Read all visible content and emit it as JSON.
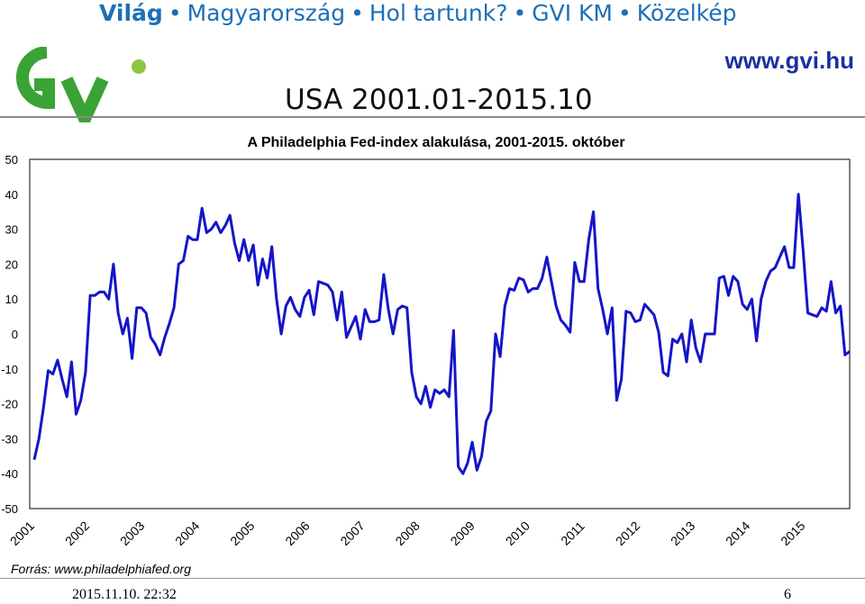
{
  "nav": {
    "items": [
      "Világ",
      "Magyarország",
      "Hol tartunk?",
      "GVI KM",
      "Közelkép"
    ],
    "separator": "•"
  },
  "logo": {
    "name": "gvi-logo",
    "text": "GV",
    "colors": [
      "#3aa335",
      "#8dc63f"
    ]
  },
  "site_url": "www.gvi.hu",
  "subtitle": "USA 2001.01-2015.10",
  "source": "Forrás: www.philadelphiafed.org",
  "timestamp": "2015.11.10. 22:32",
  "page_number": "6",
  "colors": {
    "nav": "#1d6fb8",
    "series": "#1515c8",
    "site": "#1a2fa0"
  },
  "chart_data": {
    "type": "line",
    "title": "A Philadelphia Fed-index alakulása, 2001-2015. október",
    "xlabel": "",
    "ylabel": "",
    "ylim": [
      -50,
      50
    ],
    "yticks": [
      50,
      40,
      30,
      20,
      10,
      0,
      -10,
      -20,
      -30,
      -40,
      -50
    ],
    "x_labels": [
      "2001",
      "2002",
      "2003",
      "2004",
      "2005",
      "2006",
      "2007",
      "2008",
      "2009",
      "2010",
      "2011",
      "2012",
      "2013",
      "2014",
      "2015"
    ],
    "x_start": "2001-01",
    "x_end": "2015-10",
    "frequency": "monthly",
    "grid": false,
    "legend": "none",
    "series": [
      {
        "values": [
          -36,
          -30,
          -21,
          -10.5,
          -11.5,
          -7.5,
          -13,
          -18,
          -8,
          -23,
          -19,
          -11,
          11,
          11,
          12,
          12,
          10,
          20,
          6,
          0,
          4.5,
          -7,
          7.5,
          7.5,
          6,
          -1,
          -3,
          -6,
          -1,
          3,
          7.5,
          20,
          21,
          28,
          27,
          27,
          36,
          29,
          30,
          32,
          29,
          31,
          34,
          26,
          21,
          27,
          21,
          25.5,
          14,
          21.5,
          16,
          25,
          10,
          0,
          8,
          10.5,
          7,
          5,
          10.5,
          12.5,
          5.5,
          15,
          14.5,
          14,
          12,
          4,
          12,
          -1,
          2,
          5,
          -1.5,
          7,
          3.5,
          3.5,
          4,
          17,
          7,
          0,
          7,
          8,
          7.5,
          -11,
          -18,
          -20,
          -15,
          -21,
          -16,
          -17,
          -16,
          -18,
          1,
          -38,
          -40,
          -37,
          -31,
          -39,
          -35,
          -25,
          -22,
          0,
          -6.5,
          8,
          13,
          12.5,
          16,
          15.5,
          12,
          13,
          13,
          16,
          22,
          15,
          8,
          4,
          2.5,
          0.5,
          20.5,
          15,
          15,
          27,
          35,
          13,
          7,
          0,
          7.5,
          -19,
          -13,
          6.5,
          6,
          3.5,
          4,
          8.5,
          7,
          5.5,
          0.5,
          -11,
          -12,
          -1.5,
          -2.5,
          0,
          -8,
          4,
          -4,
          -8,
          0,
          0,
          0,
          16,
          16.5,
          11,
          16.5,
          15,
          8.5,
          7,
          10,
          -2,
          10,
          15,
          18,
          19,
          22,
          25,
          19,
          19,
          40,
          24,
          6,
          5.5,
          5,
          7.5,
          6.5,
          15,
          6,
          8,
          -6,
          -5
        ]
      }
    ]
  }
}
